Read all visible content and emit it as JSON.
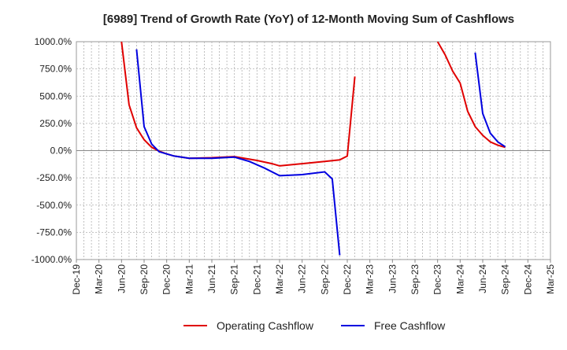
{
  "chart_data": {
    "type": "line",
    "title": "[6989]  Trend of Growth Rate (YoY) of 12-Month Moving Sum of Cashflows",
    "xlabel": "",
    "ylabel": "",
    "x_ticks": [
      "Dec-19",
      "Mar-20",
      "Jun-20",
      "Sep-20",
      "Dec-20",
      "Mar-21",
      "Jun-21",
      "Sep-21",
      "Dec-21",
      "Mar-22",
      "Jun-22",
      "Sep-22",
      "Dec-22",
      "Mar-23",
      "Jun-23",
      "Sep-23",
      "Dec-23",
      "Mar-24",
      "Jun-24",
      "Sep-24",
      "Dec-24",
      "Mar-25"
    ],
    "y_ticks": [
      "1000.0%",
      "750.0%",
      "500.0%",
      "250.0%",
      "0.0%",
      "-250.0%",
      "-500.0%",
      "-750.0%",
      "-1000.0%"
    ],
    "ylim": [
      -1000,
      1000
    ],
    "grid": true,
    "legend_position": "bottom",
    "series": [
      {
        "name": "Operating Cashflow",
        "color": "#e00000",
        "points": [
          [
            "Jun-20",
            1000
          ],
          [
            "Jul-20",
            420
          ],
          [
            "Aug-20",
            210
          ],
          [
            "Sep-20",
            100
          ],
          [
            "Oct-20",
            30
          ],
          [
            "Nov-20",
            -5
          ],
          [
            "Dec-20",
            -30
          ],
          [
            "Jan-21",
            -50
          ],
          [
            "Feb-21",
            -60
          ],
          [
            "Mar-21",
            -70
          ],
          [
            "Jun-21",
            -65
          ],
          [
            "Sep-21",
            -55
          ],
          [
            "Dec-21",
            -90
          ],
          [
            "Feb-22",
            -120
          ],
          [
            "Mar-22",
            -140
          ],
          [
            "Jun-22",
            -120
          ],
          [
            "Sep-22",
            -100
          ],
          [
            "Nov-22",
            -85
          ],
          [
            "Dec-22",
            -50
          ],
          [
            "Jan-23",
            680
          ]
        ],
        "segment2": [
          [
            "Dec-23",
            1000
          ],
          [
            "Jan-24",
            880
          ],
          [
            "Feb-24",
            730
          ],
          [
            "Mar-24",
            620
          ],
          [
            "Apr-24",
            360
          ],
          [
            "May-24",
            220
          ],
          [
            "Jun-24",
            140
          ],
          [
            "Jul-24",
            80
          ],
          [
            "Aug-24",
            50
          ],
          [
            "Sep-24",
            30
          ]
        ]
      },
      {
        "name": "Free Cashflow",
        "color": "#0000e0",
        "points": [
          [
            "Aug-20",
            930
          ],
          [
            "Sep-20",
            220
          ],
          [
            "Oct-20",
            60
          ],
          [
            "Nov-20",
            -10
          ],
          [
            "Dec-20",
            -30
          ],
          [
            "Jan-21",
            -50
          ],
          [
            "Mar-21",
            -70
          ],
          [
            "Jun-21",
            -70
          ],
          [
            "Sep-21",
            -60
          ],
          [
            "Nov-21",
            -100
          ],
          [
            "Jan-22",
            -160
          ],
          [
            "Mar-22",
            -230
          ],
          [
            "Jun-22",
            -220
          ],
          [
            "Sep-22",
            -195
          ],
          [
            "Oct-22",
            -260
          ],
          [
            "Nov-22",
            -960
          ]
        ],
        "segment2": [
          [
            "May-24",
            900
          ],
          [
            "Jun-24",
            340
          ],
          [
            "Jul-24",
            160
          ],
          [
            "Aug-24",
            80
          ],
          [
            "Sep-24",
            35
          ]
        ]
      }
    ]
  }
}
